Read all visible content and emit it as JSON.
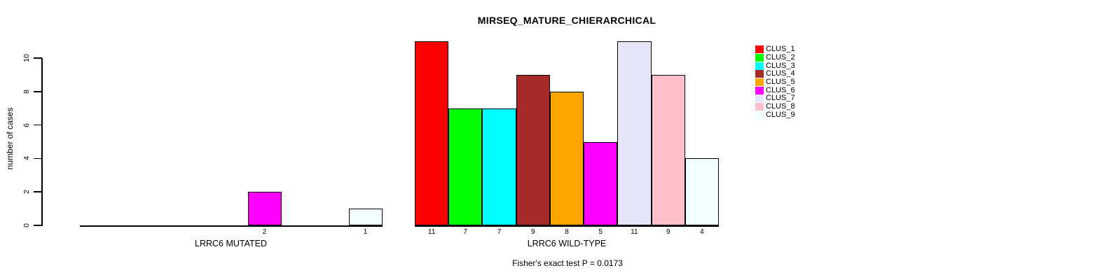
{
  "chart_data": {
    "type": "bar",
    "title": "MIRSEQ_MATURE_CHIERARCHICAL",
    "ylabel": "number of cases",
    "ylim": [
      0,
      10
    ],
    "yticks": [
      0,
      2,
      4,
      6,
      8,
      10
    ],
    "grid": false,
    "legend_position": "right",
    "categories": [
      "CLUS_1",
      "CLUS_2",
      "CLUS_3",
      "CLUS_4",
      "CLUS_5",
      "CLUS_6",
      "CLUS_7",
      "CLUS_8",
      "CLUS_9"
    ],
    "cluster_colors": [
      "#FF0000",
      "#00FF00",
      "#00FFFF",
      "#A52A2A",
      "#FFA500",
      "#FF00FF",
      "#E6E6FA",
      "#FFC0CB",
      "#F0FFFF"
    ],
    "series": [
      {
        "name": "LRRC6 MUTATED",
        "values": [
          null,
          null,
          null,
          null,
          null,
          2,
          null,
          null,
          1
        ]
      },
      {
        "name": "LRRC6 WILD-TYPE",
        "values": [
          11,
          7,
          7,
          9,
          8,
          5,
          11,
          9,
          4
        ]
      }
    ],
    "annotation": "Fisher's exact test P = 0.0173",
    "axis_color": "#000000",
    "bar_border_color": "#000000",
    "background_color": "#FFFFFF"
  }
}
